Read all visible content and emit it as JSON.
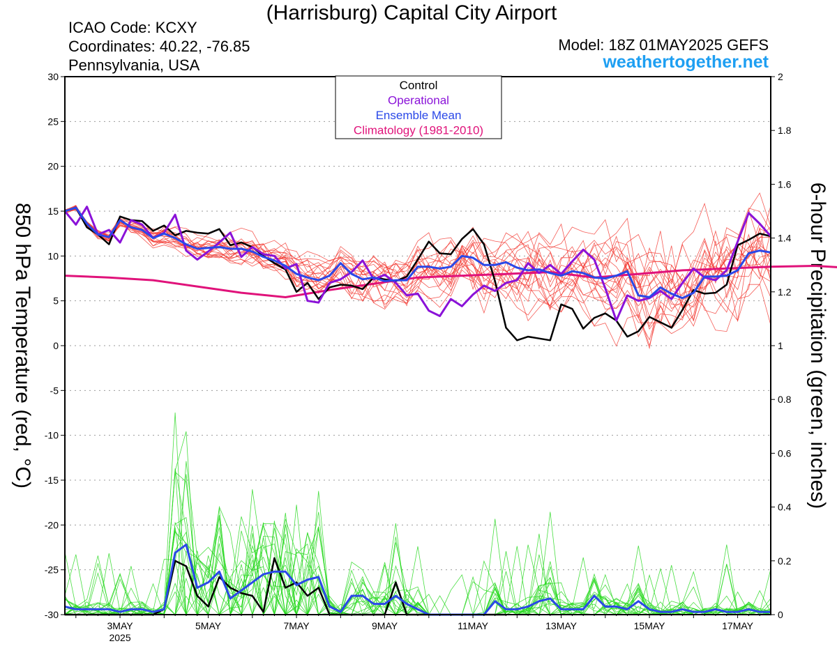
{
  "header": {
    "title": "(Harrisburg) Capital City Airport",
    "icao": "ICAO Code: KCXY",
    "coordinates": "Coordinates: 40.22, -76.85",
    "region": "Pennsylvania, USA",
    "model": "Model: 18Z 01MAY2025 GEFS",
    "site": "weathertogether.net"
  },
  "chart_data": {
    "type": "line",
    "ylabel": "850 hPa Temperature (red, °C)",
    "ylabel_right": "6-hour Precipitation (green, inches)",
    "ylim": [
      -30,
      30
    ],
    "ylim_right": [
      0,
      2
    ],
    "yticks": [
      30,
      25,
      20,
      15,
      10,
      5,
      0,
      -5,
      -10,
      -15,
      -20,
      -25,
      -30
    ],
    "yticks_right": [
      "2",
      "1.8",
      "1.6",
      "1.4",
      "1.2",
      "1",
      "0.8",
      "0.6",
      "0.4",
      "0.2",
      "0"
    ],
    "xrange_days": [
      1.75,
      17.75
    ],
    "xticks": [
      {
        "day": 3,
        "label": "3MAY",
        "sub": "2025"
      },
      {
        "day": 5,
        "label": "5MAY"
      },
      {
        "day": 7,
        "label": "7MAY"
      },
      {
        "day": 9,
        "label": "9MAY"
      },
      {
        "day": 11,
        "label": "11MAY"
      },
      {
        "day": 13,
        "label": "13MAY"
      },
      {
        "day": 15,
        "label": "15MAY"
      },
      {
        "day": 17,
        "label": "17MAY"
      }
    ],
    "grid": "horizontal dotted",
    "legend": {
      "position": "top-center",
      "entries": [
        {
          "label": "Control",
          "color": "#000000"
        },
        {
          "label": "Operational",
          "color": "#8a12d8"
        },
        {
          "label": "Ensemble Mean",
          "color": "#2a48e8"
        },
        {
          "label": "Climatology (1981-2010)",
          "color": "#e0127a"
        }
      ]
    },
    "colors": {
      "member_temp": "#f2322a",
      "member_precip": "#27d81e",
      "control": "#000000",
      "operational": "#8a12d8",
      "mean": "#2a48e8",
      "climatology": "#e0127a"
    },
    "series": [
      {
        "name": "Control",
        "axis": "temp",
        "x_start": 1.75,
        "x_step": 0.25,
        "values": [
          15.0,
          15.4,
          13.2,
          12.4,
          11.3,
          14.4,
          14.0,
          13.9,
          12.8,
          13.4,
          12.3,
          12.8,
          12.6,
          12.5,
          13.0,
          11.2,
          11.5,
          11.0,
          10.0,
          9.2,
          8.5,
          6.0,
          7.0,
          5.2,
          6.5,
          6.8,
          6.7,
          6.3,
          7.6,
          7.4,
          7.2,
          7.7,
          9.6,
          11.6,
          10.3,
          10.2,
          11.9,
          13.0,
          11.3,
          7.2,
          2.0,
          0.6,
          1.0,
          0.8,
          0.6,
          4.6,
          4.1,
          1.9,
          3.1,
          3.6,
          2.8,
          1.0,
          1.6,
          3.2,
          2.6,
          2.0,
          4.0,
          6.2,
          5.8,
          5.9,
          6.8,
          11.2,
          11.8,
          12.5,
          12.2
        ]
      },
      {
        "name": "Operational",
        "axis": "temp",
        "x_start": 1.75,
        "x_step": 0.25,
        "values": [
          15.0,
          13.5,
          15.5,
          12.4,
          12.9,
          11.5,
          14.0,
          13.5,
          12.0,
          12.6,
          14.6,
          10.6,
          9.6,
          10.5,
          11.5,
          12.6,
          9.9,
          11.0,
          10.2,
          10.0,
          8.6,
          9.1,
          5.0,
          4.8,
          7.0,
          7.4,
          8.2,
          9.5,
          7.4,
          7.9,
          7.0,
          5.6,
          5.8,
          3.9,
          3.3,
          5.2,
          4.4,
          5.7,
          6.7,
          6.1,
          7.0,
          7.3,
          9.2,
          8.1,
          9.0,
          8.0,
          9.4,
          10.7,
          9.6,
          6.4,
          2.8,
          5.6,
          5.0,
          5.3,
          6.1,
          5.2,
          7.0,
          8.6,
          7.6,
          7.3,
          8.4,
          11.6,
          14.8,
          13.6,
          12.2
        ]
      },
      {
        "name": "Ensemble Mean",
        "axis": "temp",
        "x_start": 1.75,
        "x_step": 0.25,
        "values": [
          15.0,
          15.4,
          13.6,
          12.4,
          12.1,
          14.0,
          13.2,
          12.9,
          12.0,
          12.5,
          12.0,
          11.3,
          10.8,
          10.9,
          11.0,
          10.8,
          10.8,
          10.5,
          9.9,
          9.5,
          8.9,
          8.0,
          7.6,
          7.3,
          7.8,
          9.2,
          8.0,
          7.4,
          7.6,
          7.2,
          7.3,
          7.3,
          8.8,
          8.8,
          8.6,
          8.8,
          10.0,
          9.8,
          9.0,
          9.0,
          9.3,
          8.7,
          8.4,
          8.5,
          8.1,
          7.8,
          8.3,
          8.1,
          7.6,
          7.5,
          7.8,
          8.3,
          5.6,
          5.4,
          6.5,
          5.8,
          5.3,
          5.9,
          7.7,
          7.7,
          7.8,
          8.4,
          10.3,
          10.6,
          10.4
        ]
      },
      {
        "name": "Climatology (1981-2010)",
        "axis": "temp",
        "x_start": 1.75,
        "x_step": 1.0,
        "values": [
          7.8,
          7.6,
          7.3,
          6.6,
          5.9,
          5.4,
          6.2,
          6.9,
          7.6,
          7.8,
          8.0,
          8.2,
          7.6,
          8.0,
          8.4,
          8.6,
          8.8,
          8.9,
          8.6,
          7.9,
          8.1,
          8.7,
          9.1,
          9.0,
          8.8,
          8.4,
          8.2
        ]
      },
      {
        "name": "Control",
        "axis": "precip",
        "x_start": 1.75,
        "x_step": 0.25,
        "values": [
          0.0,
          0.0,
          0.0,
          0.0,
          0.0,
          0.0,
          0.0,
          0.0,
          0.0,
          0.02,
          0.2,
          0.18,
          0.07,
          0.03,
          0.14,
          0.1,
          0.08,
          0.07,
          0.01,
          0.21,
          0.1,
          0.12,
          0.07,
          0.1,
          0.0,
          0.0,
          0.0,
          0.0,
          0.0,
          0.0,
          0.12,
          0.0,
          0.0,
          0.0,
          0.0,
          0.0,
          0.0,
          0.0,
          0.0,
          0.0,
          0.0
        ]
      },
      {
        "name": "Ensemble Mean",
        "axis": "precip",
        "x_start": 1.75,
        "x_step": 0.25,
        "values": [
          0.03,
          0.02,
          0.02,
          0.02,
          0.02,
          0.01,
          0.02,
          0.02,
          0.01,
          0.02,
          0.23,
          0.26,
          0.1,
          0.12,
          0.16,
          0.06,
          0.09,
          0.12,
          0.15,
          0.16,
          0.16,
          0.11,
          0.13,
          0.14,
          0.03,
          0.01,
          0.07,
          0.07,
          0.04,
          0.04,
          0.07,
          0.04,
          0.02,
          0.0,
          0.0,
          0.0,
          0.0,
          0.0,
          0.0,
          0.05,
          0.02,
          0.02,
          0.03,
          0.05,
          0.06,
          0.02,
          0.02,
          0.02,
          0.07,
          0.03,
          0.03,
          0.02,
          0.05,
          0.02,
          0.01,
          0.01,
          0.02,
          0.01,
          0.01,
          0.02,
          0.01,
          0.01,
          0.02,
          0.01,
          0.01
        ]
      }
    ]
  }
}
